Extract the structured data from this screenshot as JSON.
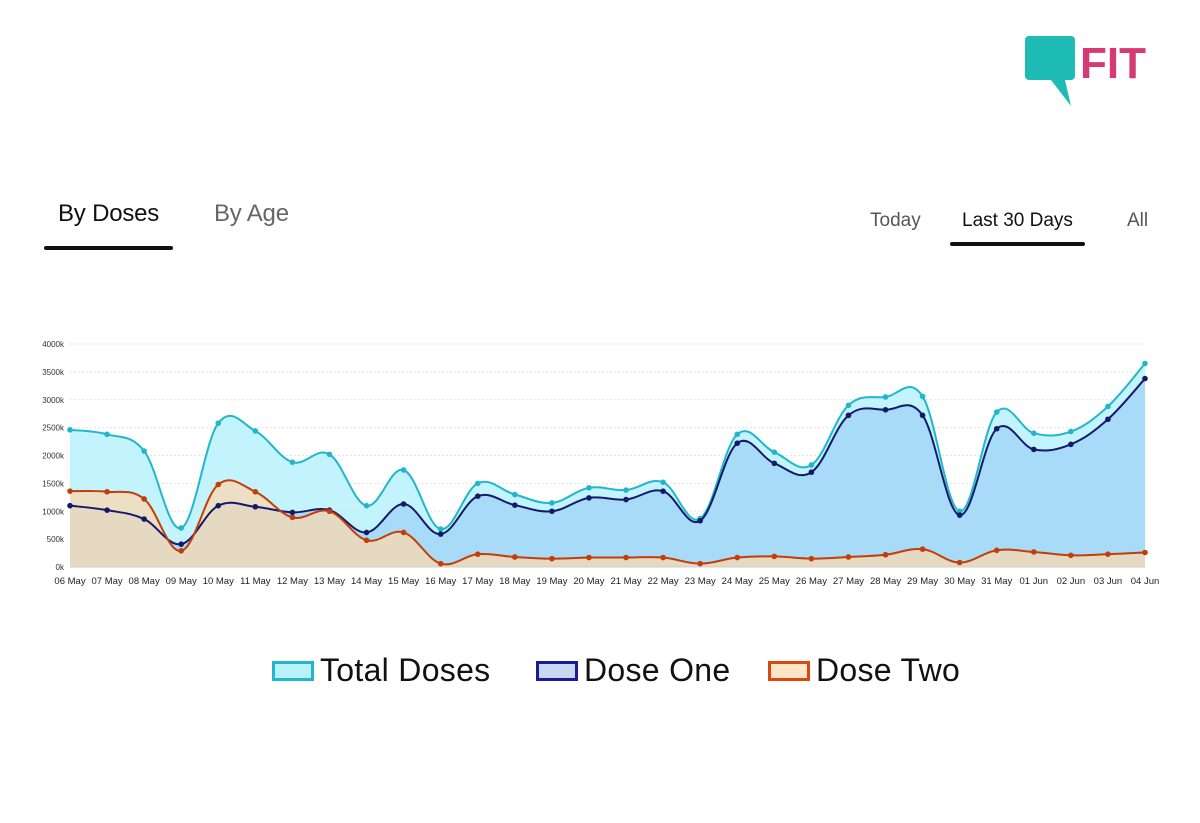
{
  "brand": {
    "logo_text": "FIT",
    "bubble_color": "#1fbcb5",
    "text_color": "#d63a73"
  },
  "tabs": [
    {
      "label": "By Doses",
      "active": true
    },
    {
      "label": "By Age",
      "active": false
    }
  ],
  "ranges": [
    {
      "label": "Today",
      "active": false
    },
    {
      "label": "Last 30 Days",
      "active": true
    },
    {
      "label": "All",
      "active": false
    }
  ],
  "chart_data": {
    "type": "area",
    "title": "",
    "xlabel": "",
    "ylabel": "",
    "categories": [
      "06 May",
      "07 May",
      "08 May",
      "09 May",
      "10 May",
      "11 May",
      "12 May",
      "13 May",
      "14 May",
      "15 May",
      "16 May",
      "17 May",
      "18 May",
      "19 May",
      "20 May",
      "21 May",
      "22 May",
      "23 May",
      "24 May",
      "25 May",
      "26 May",
      "27 May",
      "28 May",
      "29 May",
      "30 May",
      "31 May",
      "01 Jun",
      "02 Jun",
      "03 Jun",
      "04 Jun"
    ],
    "y_ticks": [
      "0k",
      "500k",
      "1000k",
      "1500k",
      "2000k",
      "2500k",
      "3000k",
      "3500k",
      "4000k"
    ],
    "ylim": [
      0,
      4000
    ],
    "grid": true,
    "series": [
      {
        "name": "Total Doses",
        "color": "#22b6cc",
        "fill": "#b9f1fb",
        "values": [
          2460,
          2380,
          2080,
          700,
          2580,
          2440,
          1880,
          2020,
          1100,
          1740,
          680,
          1500,
          1300,
          1150,
          1420,
          1380,
          1520,
          870,
          2380,
          2060,
          1830,
          2900,
          3050,
          3060,
          1000,
          2780,
          2400,
          2430,
          2880,
          3650
        ]
      },
      {
        "name": "Dose One",
        "color": "#141a6b",
        "fill": "#9fd3f5",
        "values": [
          1100,
          1020,
          860,
          410,
          1100,
          1080,
          980,
          1020,
          620,
          1130,
          590,
          1270,
          1110,
          1000,
          1240,
          1210,
          1360,
          830,
          2220,
          1860,
          1700,
          2720,
          2820,
          2720,
          930,
          2480,
          2110,
          2200,
          2650,
          3380
        ]
      },
      {
        "name": "Dose Two",
        "color": "#c43d08",
        "fill": "#fad8b0",
        "values": [
          1360,
          1350,
          1220,
          290,
          1480,
          1350,
          890,
          1000,
          480,
          620,
          60,
          230,
          180,
          150,
          170,
          170,
          170,
          60,
          170,
          190,
          150,
          180,
          220,
          320,
          80,
          300,
          270,
          210,
          230,
          260
        ]
      }
    ],
    "legend": [
      "Total Doses",
      "Dose One",
      "Dose Two"
    ],
    "legend_placement": "bottom"
  }
}
